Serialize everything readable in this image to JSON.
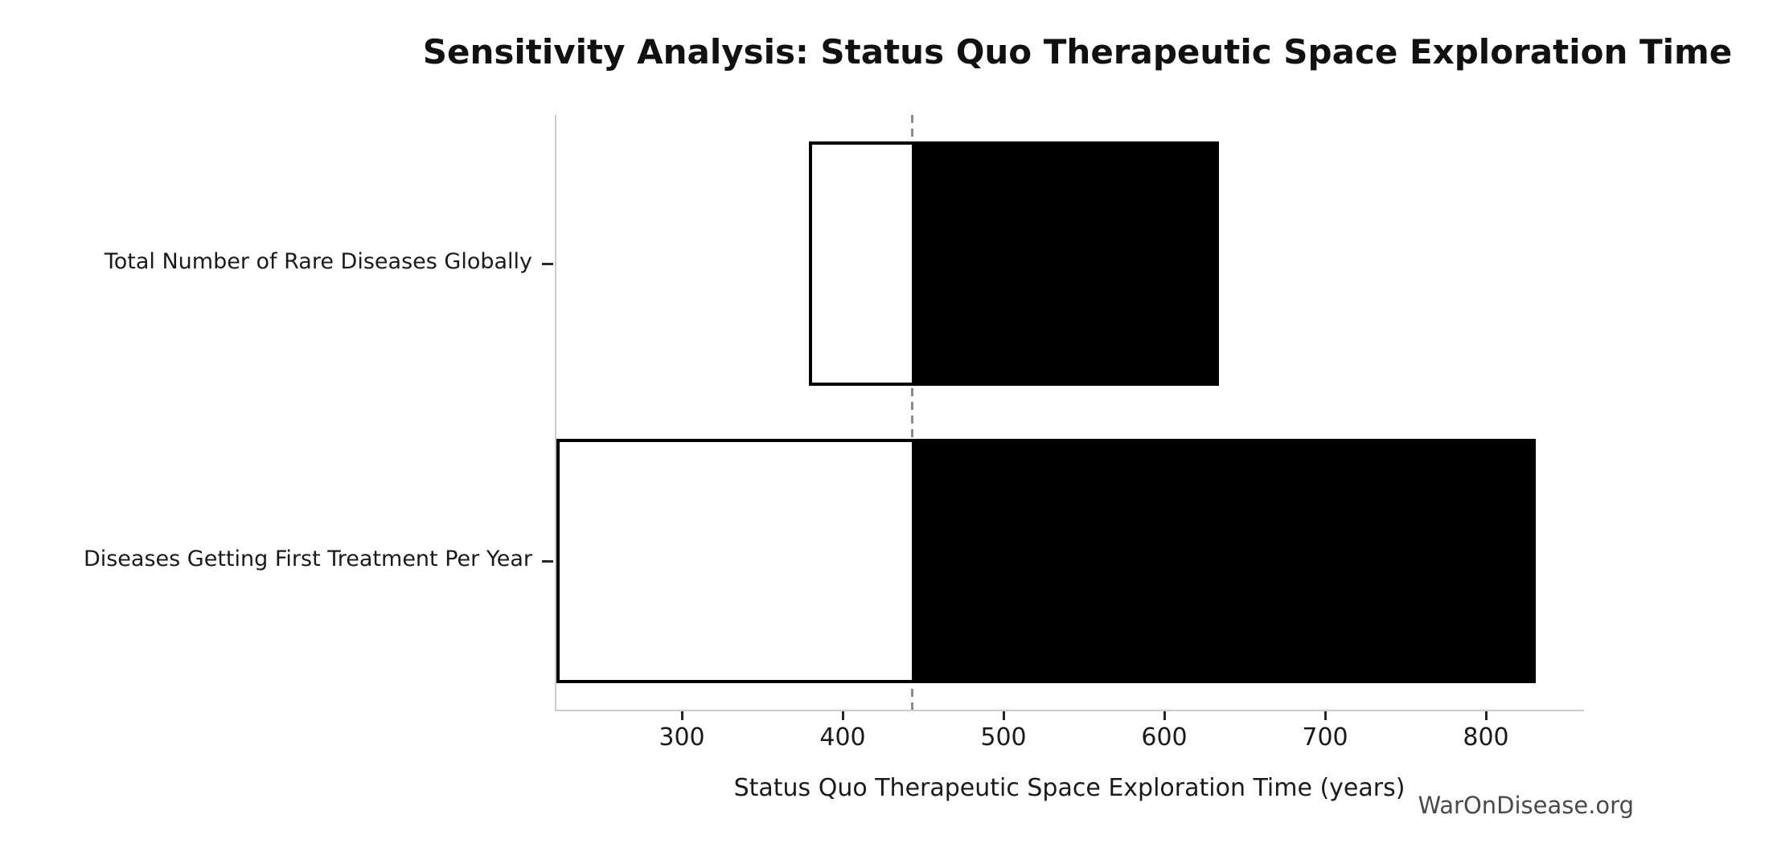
{
  "figure": {
    "title": "Sensitivity Analysis: Status Quo Therapeutic Space Exploration Time",
    "watermark": "WarOnDisease.org"
  },
  "chart_data": {
    "type": "bar",
    "variant": "tornado-sensitivity",
    "orientation": "horizontal",
    "title": "Sensitivity Analysis: Status Quo Therapeutic Space Exploration Time",
    "xlabel": "Status Quo Therapeutic Space Exploration Time (years)",
    "ylabel": "",
    "categories": [
      "Total Number of Rare Diseases Globally",
      "Diseases Getting First Treatment Per Year"
    ],
    "bars": [
      {
        "category": "Total Number of Rare Diseases Globally",
        "low": 379,
        "base": 443,
        "high": 634
      },
      {
        "category": "Diseases Getting First Treatment Per Year",
        "low": 222,
        "base": 443,
        "high": 831
      }
    ],
    "baseline_value": 443,
    "x_ticks": [
      300,
      400,
      500,
      600,
      700,
      800
    ],
    "xlim": [
      222,
      860
    ],
    "grid": false,
    "legend": false,
    "colors": {
      "low_fill": "#ffffff",
      "high_fill": "#000000",
      "bar_edge": "#000000",
      "baseline": "#8a8a8a",
      "spine": "#cccccc",
      "text": "#1a1a1a",
      "watermark": "#4a4a4a"
    }
  }
}
